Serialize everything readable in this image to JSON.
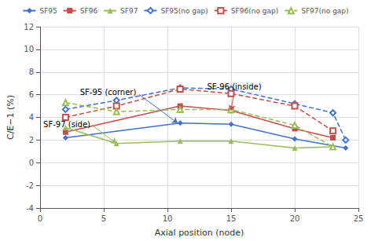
{
  "chart_data": {
    "type": "line",
    "xlabel": "Axial position (node)",
    "ylabel": "C/E−1 (%)",
    "xlim": [
      0,
      25
    ],
    "ylim": [
      -4,
      12
    ],
    "xticks": [
      0,
      5,
      10,
      15,
      20,
      25
    ],
    "yticks": [
      -4,
      -2,
      0,
      2,
      4,
      6,
      8,
      10,
      12
    ],
    "grid": true,
    "legend": "top",
    "series": [
      {
        "name": "SF95",
        "color": "#4472C4",
        "marker": "diamond",
        "line_style": "solid",
        "x": [
          2,
          11,
          15,
          20,
          24
        ],
        "values": [
          2.2,
          3.5,
          3.4,
          2.1,
          1.3
        ]
      },
      {
        "name": "SF96",
        "color": "#C0504D",
        "marker": "square",
        "line_style": "solid",
        "x": [
          2,
          11,
          15,
          20,
          23
        ],
        "values": [
          2.7,
          5.0,
          4.6,
          3.0,
          2.2
        ]
      },
      {
        "name": "SF97",
        "color": "#9BBB59",
        "marker": "triangle",
        "line_style": "solid",
        "x": [
          2,
          6,
          11,
          15,
          20,
          23
        ],
        "values": [
          3.1,
          1.7,
          1.9,
          1.9,
          1.3,
          1.4
        ]
      },
      {
        "name": "SF95(no gap)",
        "color": "#4472C4",
        "marker": "open_diamond",
        "line_style": "dashed",
        "x": [
          2,
          6,
          11,
          15,
          20,
          23,
          24
        ],
        "values": [
          4.7,
          5.5,
          6.6,
          6.5,
          5.2,
          4.4,
          2.0
        ]
      },
      {
        "name": "SF96(no gap)",
        "color": "#C0504D",
        "marker": "open_square",
        "line_style": "dashed",
        "x": [
          2,
          6,
          11,
          15,
          20,
          23
        ],
        "values": [
          4.0,
          5.0,
          6.5,
          6.1,
          5.0,
          2.8
        ]
      },
      {
        "name": "SF97(no gap)",
        "color": "#9BBB59",
        "marker": "open_triangle",
        "line_style": "dashed",
        "x": [
          2,
          6,
          11,
          15,
          20,
          23
        ],
        "values": [
          5.3,
          4.5,
          4.7,
          4.7,
          3.3,
          1.4
        ]
      }
    ],
    "annotations": [
      {
        "text": "SF-95 (corner)",
        "xy": [
          10.8,
          3.5
        ],
        "xytext": [
          7.8,
          6.0
        ],
        "color": "#4472C4"
      },
      {
        "text": "SF-96 (inside)",
        "xy": [
          15.0,
          4.6
        ],
        "xytext": [
          15.2,
          6.0
        ],
        "color": "#C0504D"
      },
      {
        "text": "SF-97 (side)",
        "xy": [
          6.0,
          1.7
        ],
        "xytext": [
          4.2,
          3.2
        ],
        "color": "#9BBB59"
      }
    ]
  }
}
